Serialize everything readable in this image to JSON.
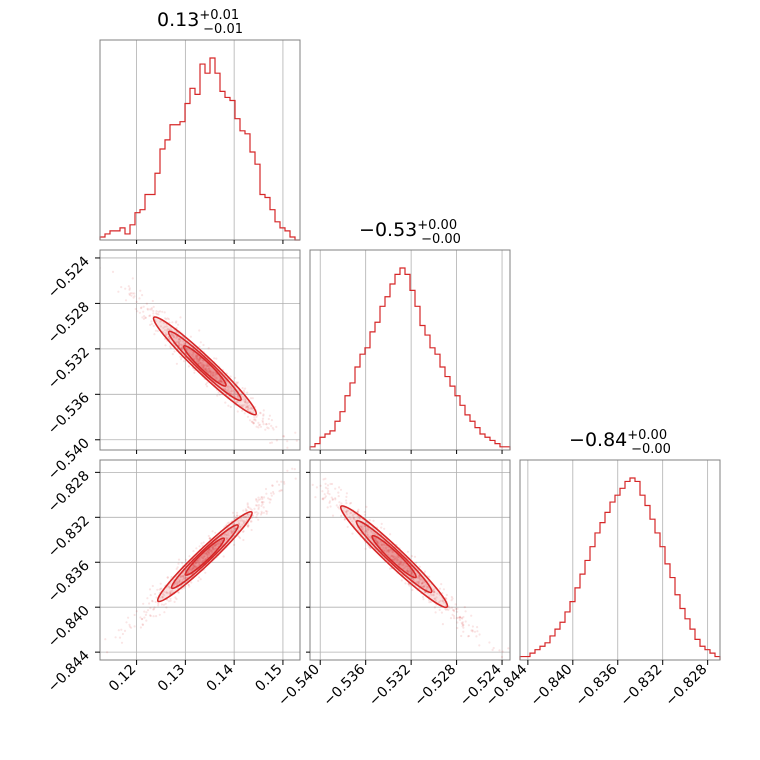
{
  "chart_data": {
    "type": "corner",
    "color": "#d62728",
    "grid": true,
    "parameters": [
      {
        "title_main": "0.13",
        "title_sup": "+0.01",
        "title_sub": "−0.01",
        "range": [
          0.1125,
          0.1535
        ],
        "median": 0.134,
        "ticks": [
          "0.12",
          "0.13",
          "0.14",
          "0.15"
        ],
        "tick_values": [
          0.12,
          0.13,
          0.14,
          0.15
        ]
      },
      {
        "title_main": "−0.53",
        "title_sup": "+0.00",
        "title_sub": "−0.00",
        "range": [
          -0.5409,
          -0.5233
        ],
        "median": -0.534,
        "ticks": [
          "−0.540",
          "−0.536",
          "−0.532",
          "−0.528",
          "−0.524"
        ],
        "tick_values": [
          -0.54,
          -0.536,
          -0.532,
          -0.528,
          -0.524
        ]
      },
      {
        "title_main": "−0.84",
        "title_sup": "+0.00",
        "title_sub": "−0.00",
        "range": [
          -0.8447,
          -0.8269
        ],
        "median": -0.835,
        "ticks": [
          "−0.844",
          "−0.840",
          "−0.836",
          "−0.832",
          "−0.828"
        ],
        "tick_values": [
          -0.844,
          -0.84,
          -0.836,
          -0.832,
          -0.828
        ]
      }
    ],
    "histograms": [
      {
        "param": 0,
        "counts": [
          1,
          2,
          3,
          3,
          4,
          2,
          5,
          9,
          10,
          15,
          15,
          22,
          30,
          33,
          38,
          38,
          39,
          45,
          50,
          48,
          58,
          55,
          60,
          55,
          49,
          47,
          46,
          40,
          36,
          35,
          29,
          25,
          15,
          14,
          10,
          6,
          4,
          3,
          1,
          0
        ]
      },
      {
        "param": 1,
        "counts": [
          1,
          2,
          4,
          5,
          6,
          9,
          12,
          17,
          21,
          26,
          30,
          32,
          37,
          40,
          45,
          48,
          52,
          55,
          57,
          55,
          50,
          45,
          39,
          36,
          32,
          30,
          26,
          23,
          20,
          17,
          14,
          11,
          9,
          7,
          5,
          4,
          3,
          2,
          1,
          1
        ]
      },
      {
        "param": 2,
        "counts": [
          1,
          1,
          2,
          3,
          4,
          5,
          7,
          9,
          11,
          14,
          17,
          21,
          25,
          29,
          33,
          37,
          40,
          43,
          46,
          48,
          50,
          52,
          53,
          52,
          48,
          45,
          41,
          37,
          33,
          28,
          24,
          19,
          15,
          12,
          9,
          6,
          4,
          3,
          2,
          1
        ]
      }
    ],
    "joint": [
      {
        "x_param": 0,
        "y_param": 1,
        "correlation": -0.95,
        "center": [
          0.134,
          -0.5335
        ],
        "scatter_x_span": [
          0.114,
          0.151
        ]
      },
      {
        "x_param": 0,
        "y_param": 2,
        "correlation": 0.97,
        "center": [
          0.134,
          -0.8355
        ],
        "scatter_x_span": [
          0.116,
          0.15
        ]
      },
      {
        "x_param": 1,
        "y_param": 2,
        "correlation": -0.98,
        "center": [
          -0.5335,
          -0.8355
        ],
        "scatter_x_span": [
          -0.5405,
          -0.524
        ]
      }
    ]
  }
}
